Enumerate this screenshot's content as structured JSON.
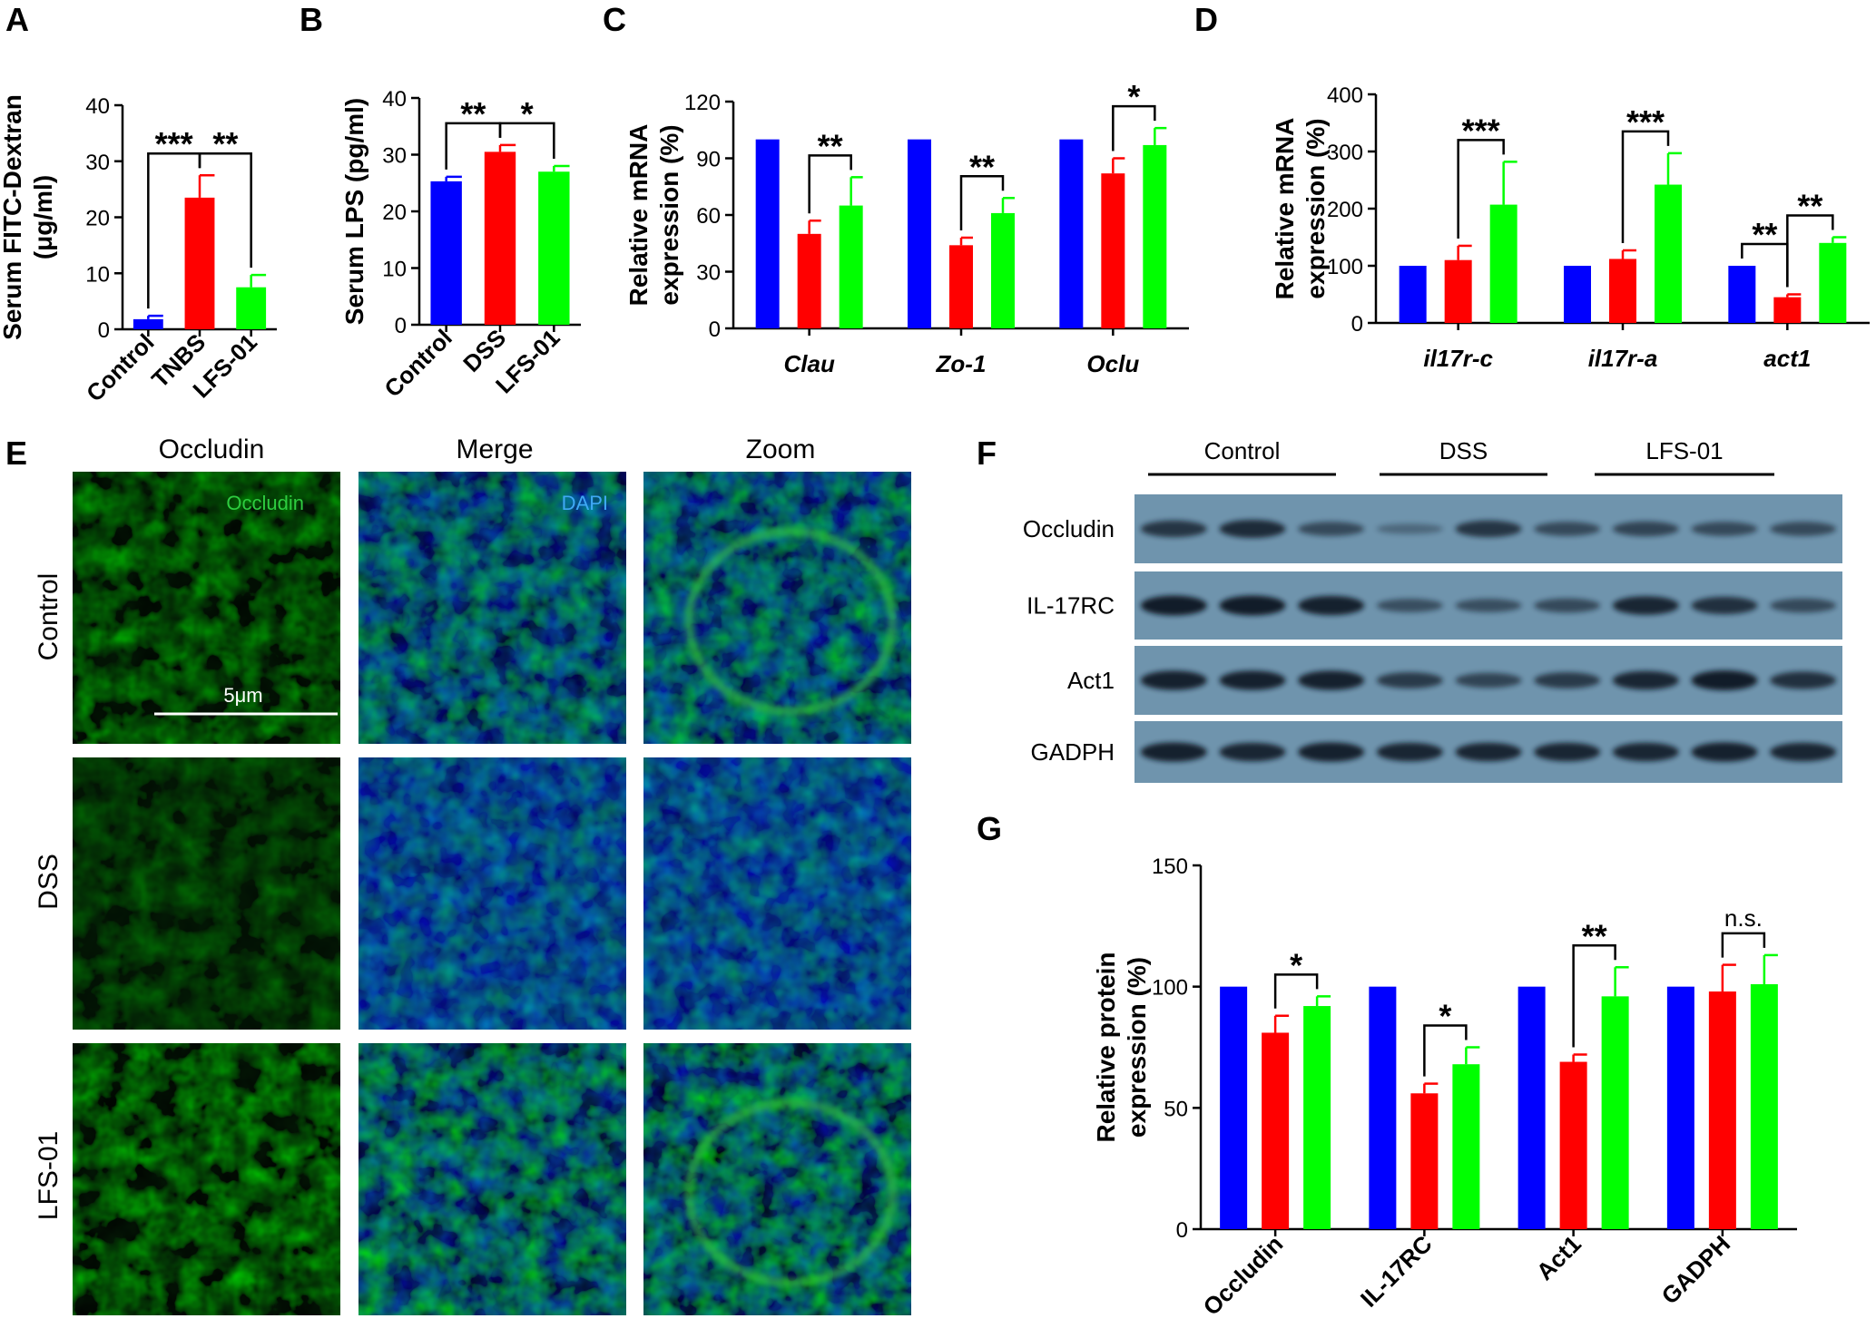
{
  "colors": {
    "control": "#0000ff",
    "treatment": "#ff0000",
    "lfs01": "#00ff00"
  },
  "chart_data": [
    {
      "panel": "A",
      "type": "bar",
      "ylabel": "Serum FITC-Dextran (μg/ml)",
      "ylabel_lines": [
        "Serum FITC-Dextran",
        "(μg/ml)"
      ],
      "ylim": [
        0,
        40
      ],
      "yticks": [
        "0",
        "10",
        "20",
        "30",
        "40"
      ],
      "categories": [
        "Control",
        "TNBS",
        "LFS-01"
      ],
      "values": [
        1.8,
        23.5,
        7.5
      ],
      "errors": [
        0.6,
        4.0,
        2.2
      ],
      "significance": [
        {
          "from": 0,
          "to": 1,
          "label": "***"
        },
        {
          "from": 1,
          "to": 2,
          "label": "**"
        }
      ]
    },
    {
      "panel": "B",
      "type": "bar",
      "ylabel": "Serum LPS (pg/ml)",
      "ylim": [
        0,
        40
      ],
      "yticks": [
        "0",
        "10",
        "20",
        "30",
        "40"
      ],
      "categories": [
        "Control",
        "DSS",
        "LFS-01"
      ],
      "values": [
        25.3,
        30.5,
        27.0
      ],
      "errors": [
        0.8,
        1.2,
        1.0
      ],
      "significance": [
        {
          "from": 0,
          "to": 1,
          "label": "**"
        },
        {
          "from": 1,
          "to": 2,
          "label": "*"
        }
      ]
    },
    {
      "panel": "C",
      "type": "bar",
      "ylabel": "Relative mRNA expression (%)",
      "ylabel_lines": [
        "Relative mRNA",
        "expression (%)"
      ],
      "ylim": [
        0,
        120
      ],
      "yticks": [
        "0",
        "30",
        "60",
        "90",
        "120"
      ],
      "categories": [
        "Clau",
        "Zo-1",
        "Oclu"
      ],
      "series": [
        {
          "values": [
            100,
            100,
            100
          ],
          "errors": [
            0,
            0,
            0
          ]
        },
        {
          "values": [
            50,
            44,
            82
          ],
          "errors": [
            7,
            4,
            8
          ]
        },
        {
          "values": [
            65,
            61,
            97
          ],
          "errors": [
            15,
            8,
            9
          ]
        }
      ],
      "significance": [
        {
          "group": 0,
          "from": 1,
          "to": 2,
          "label": "**"
        },
        {
          "group": 1,
          "from": 1,
          "to": 2,
          "label": "**"
        },
        {
          "group": 2,
          "from": 1,
          "to": 2,
          "label": "*"
        }
      ]
    },
    {
      "panel": "D",
      "type": "bar",
      "ylabel": "Relative mRNA expression (%)",
      "ylabel_lines": [
        "Relative mRNA",
        "expression (%)"
      ],
      "ylim": [
        0,
        400
      ],
      "yticks": [
        "0",
        "100",
        "200",
        "300",
        "400"
      ],
      "categories": [
        "il17r-c",
        "il17r-a",
        "act1"
      ],
      "series": [
        {
          "values": [
            100,
            100,
            100
          ],
          "errors": [
            0,
            0,
            0
          ]
        },
        {
          "values": [
            110,
            112,
            45
          ],
          "errors": [
            25,
            15,
            5
          ]
        },
        {
          "values": [
            207,
            242,
            140
          ],
          "errors": [
            75,
            55,
            10
          ]
        }
      ],
      "significance": [
        {
          "group": 0,
          "from": 1,
          "to": 2,
          "label": "***"
        },
        {
          "group": 1,
          "from": 1,
          "to": 2,
          "label": "***"
        },
        {
          "group": 2,
          "from": 0,
          "to": 1,
          "label": "**"
        },
        {
          "group": 2,
          "from": 1,
          "to": 2,
          "label": "**"
        }
      ]
    },
    {
      "panel": "G",
      "type": "bar",
      "ylabel": "Relative protein expression (%)",
      "ylabel_lines": [
        "Relative protein",
        "expression (%)"
      ],
      "ylim": [
        0,
        150
      ],
      "yticks": [
        "0",
        "50",
        "100",
        "150"
      ],
      "categories": [
        "Occludin",
        "IL-17RC",
        "Act1",
        "GADPH"
      ],
      "series": [
        {
          "values": [
            100,
            100,
            100,
            100
          ],
          "errors": [
            0,
            0,
            0,
            0
          ]
        },
        {
          "values": [
            81,
            56,
            69,
            98
          ],
          "errors": [
            7,
            4,
            3,
            11
          ]
        },
        {
          "values": [
            92,
            68,
            96,
            101
          ],
          "errors": [
            4,
            7,
            12,
            12
          ]
        }
      ],
      "significance": [
        {
          "group": 0,
          "from": 1,
          "to": 2,
          "label": "*"
        },
        {
          "group": 1,
          "from": 1,
          "to": 2,
          "label": "*"
        },
        {
          "group": 2,
          "from": 1,
          "to": 2,
          "label": "**"
        },
        {
          "group": 3,
          "from": 1,
          "to": 2,
          "label": "n.s."
        }
      ]
    }
  ],
  "panel_e": {
    "label": "E",
    "columns": [
      "Occludin",
      "Merge",
      "Zoom"
    ],
    "rows": [
      "Control",
      "DSS",
      "LFS-01"
    ],
    "channel_labels": {
      "green": "Occludin",
      "blue": "DAPI"
    },
    "scale_bar": "5μm"
  },
  "panel_f": {
    "label": "F",
    "groups": [
      "Control",
      "DSS",
      "LFS-01"
    ],
    "proteins": [
      "Occludin",
      "IL-17RC",
      "Act1",
      "GADPH"
    ],
    "band_intensity": [
      [
        0.75,
        0.85,
        0.55,
        0.25,
        0.75,
        0.55,
        0.6,
        0.55,
        0.55
      ],
      [
        1.0,
        1.0,
        0.95,
        0.5,
        0.5,
        0.55,
        0.9,
        0.8,
        0.55
      ],
      [
        0.95,
        0.95,
        0.95,
        0.7,
        0.6,
        0.7,
        0.9,
        1.0,
        0.8
      ],
      [
        0.95,
        0.9,
        0.95,
        0.9,
        0.9,
        0.9,
        0.9,
        0.95,
        0.9
      ]
    ]
  }
}
